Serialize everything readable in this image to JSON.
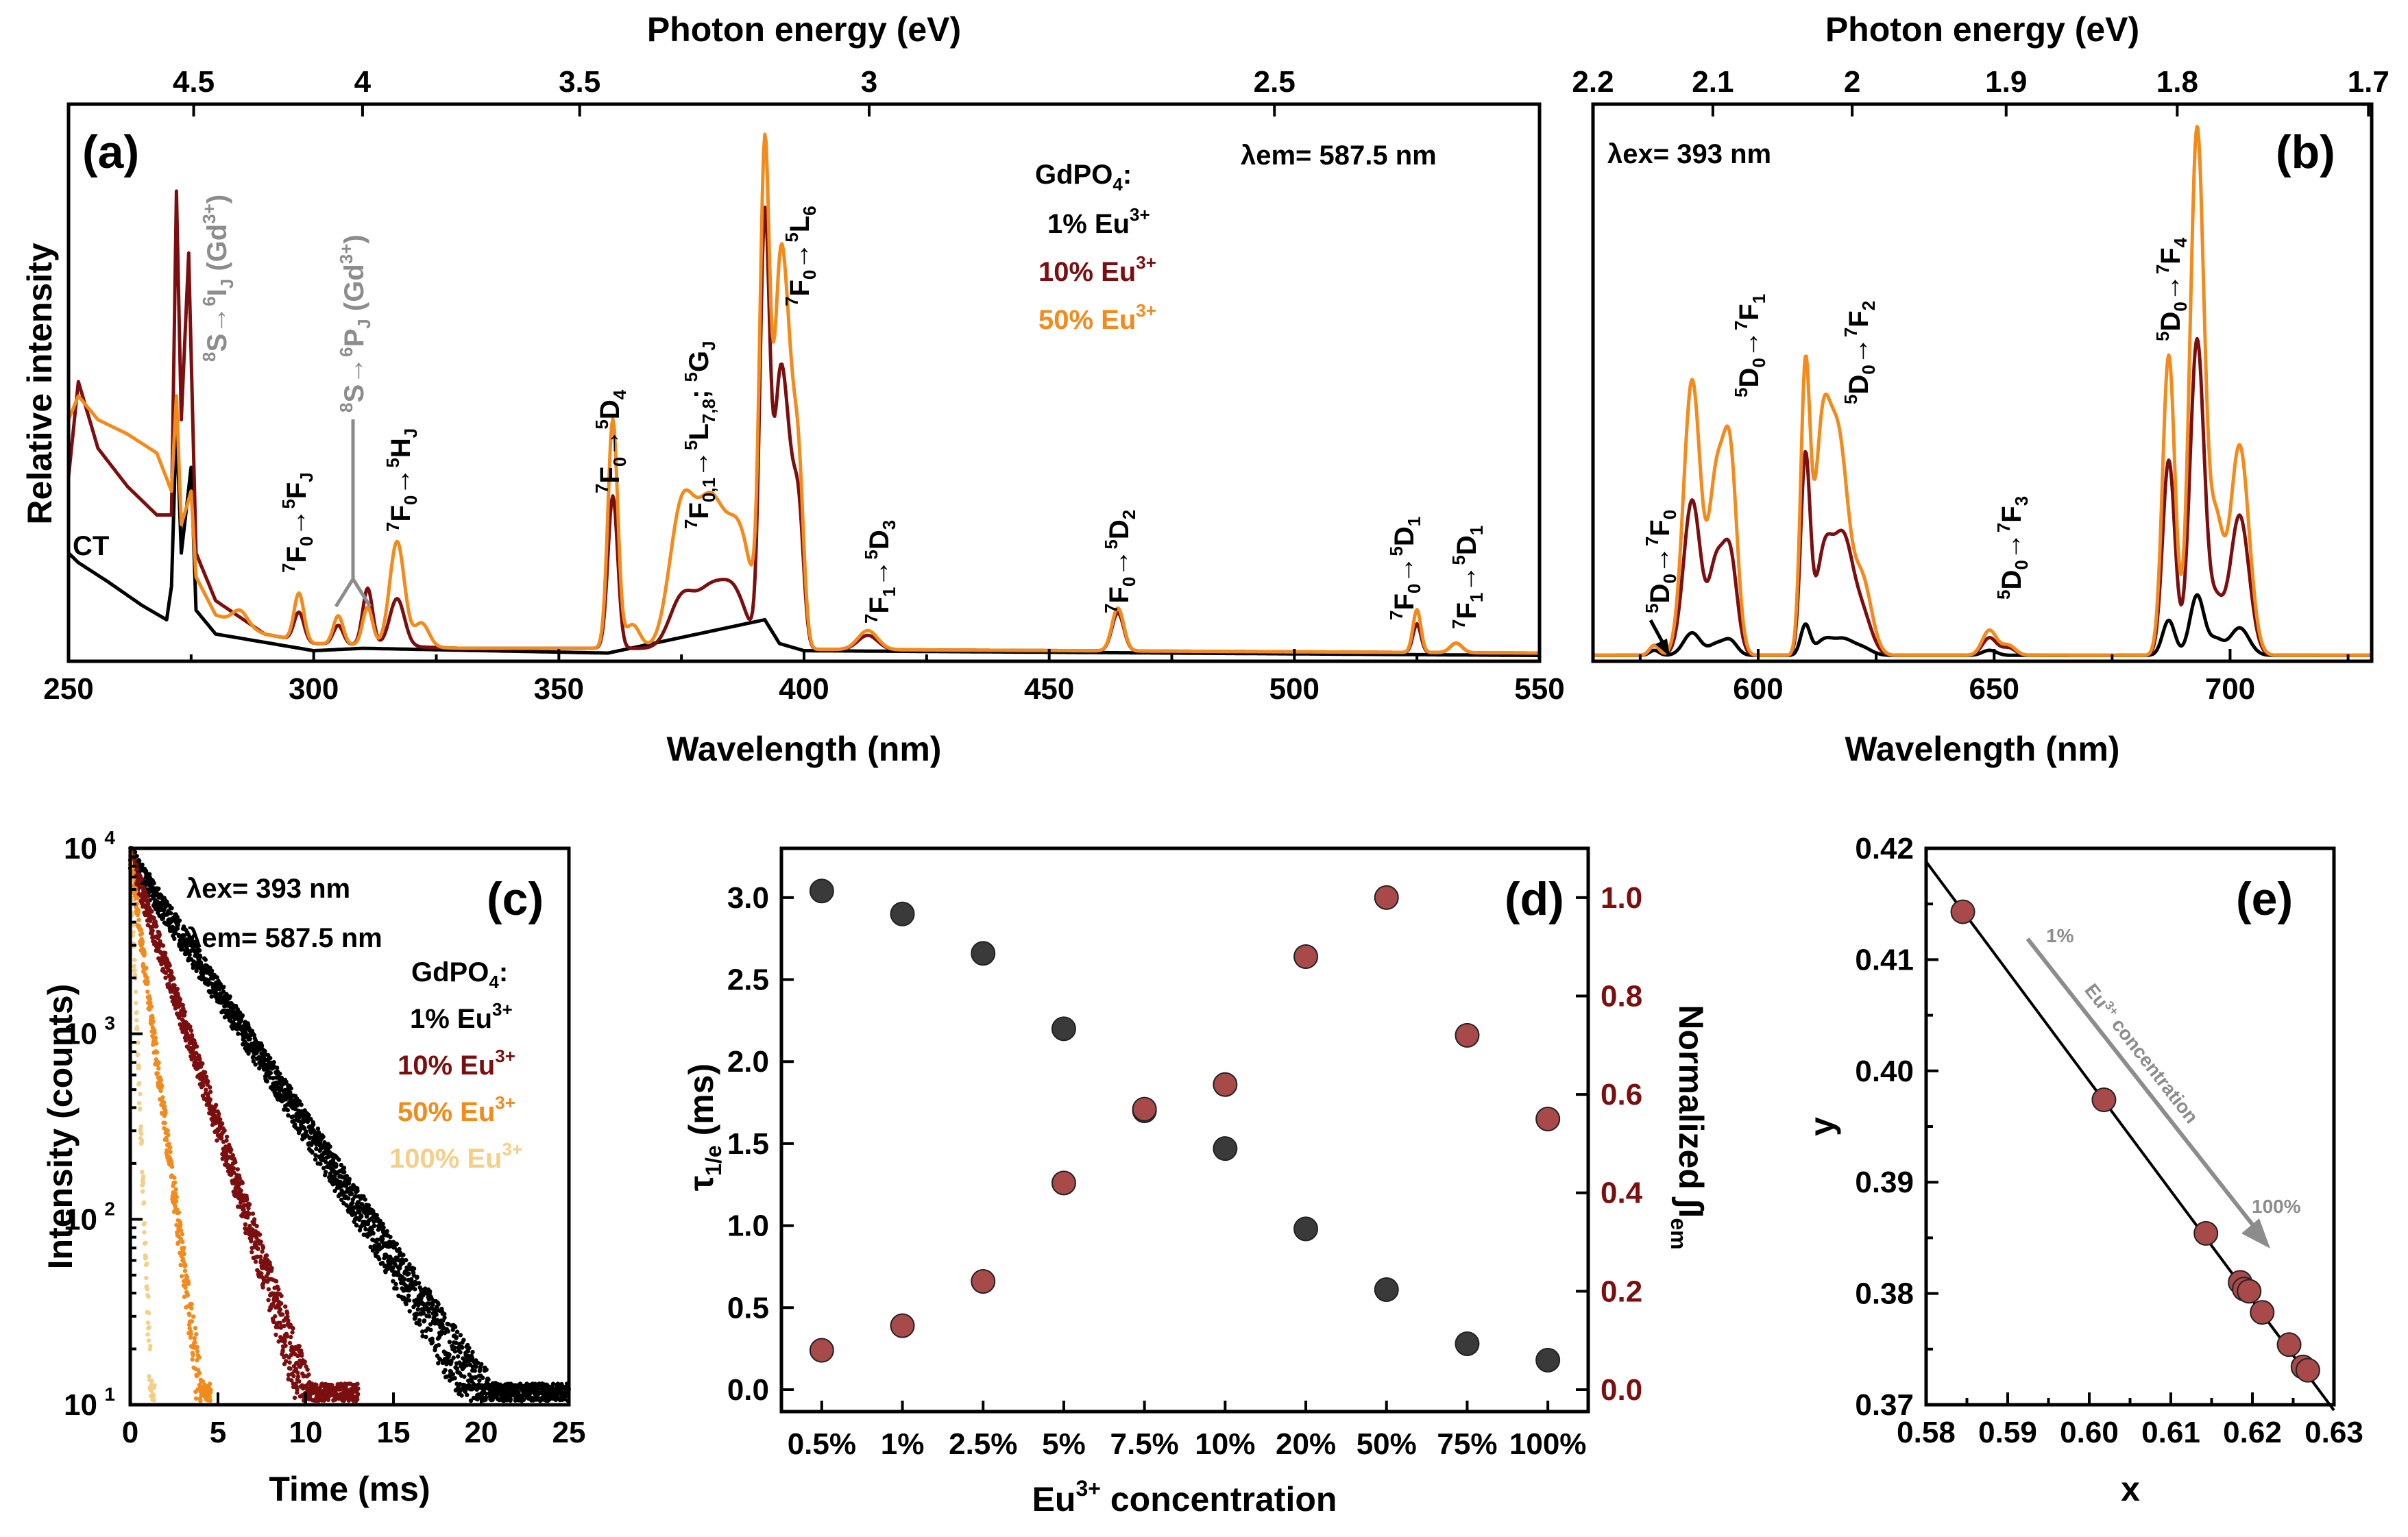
{
  "colors": {
    "c1": "#000000",
    "c10": "#7b0f0f",
    "c50": "#f28a1c",
    "c100": "#f3cf88",
    "gray": "#8c8c8c",
    "pointDark": "#3a3a3a",
    "pointRed": "#a84a4a"
  },
  "chart_data": [
    {
      "id": "a",
      "type": "line",
      "panel_label": "(a)",
      "xlabel": "Wavelength (nm)",
      "ylabel": "Relative intensity",
      "top_axis_label": "Photon energy (eV)",
      "xlim": [
        250,
        550
      ],
      "ylim": [
        0,
        1
      ],
      "xticks": [
        "250",
        "300",
        "350",
        "400",
        "450",
        "500",
        "550"
      ],
      "top_ticks": [
        "4.5",
        "4",
        "3.5",
        "3",
        "2.5"
      ],
      "note": "λem= 587.5 nm",
      "legend_title": "GdPO4:",
      "legend": [
        "1% Eu3+",
        "10% Eu3+",
        "50% Eu3+"
      ],
      "annotations": [
        "CT",
        "8S→6IJ (Gd3+)",
        "8S→6PJ (Gd3+)",
        "7F0→5FJ",
        "7F0→5HJ",
        "7F0→5D4",
        "7F0,1→5L7,8; 5GJ",
        "7F0→5L6",
        "7F1→5D3",
        "7F0→5D2",
        "7F0→5D1",
        "7F1→5D1"
      ],
      "series": [
        {
          "name": "1% Eu3+",
          "color_key": "c1",
          "base": [
            [
              250,
              0.22
            ],
            [
              252,
              0.2
            ],
            [
              258,
              0.16
            ],
            [
              265,
              0.11
            ],
            [
              270,
              0.08
            ],
            [
              271,
              0.15
            ],
            [
              272,
              0.5
            ],
            [
              273,
              0.22
            ],
            [
              275,
              0.4
            ],
            [
              276,
              0.1
            ],
            [
              280,
              0.05
            ],
            [
              300,
              0.015
            ],
            [
              310,
              0.02
            ],
            [
              360,
              0.01
            ],
            [
              392,
              0.08
            ],
            [
              395,
              0.03
            ],
            [
              400,
              0.015
            ],
            [
              550,
              0.005
            ]
          ],
          "peaks": []
        },
        {
          "name": "10% Eu3+",
          "color_key": "c10",
          "base": [
            [
              250,
              0.38
            ],
            [
              252,
              0.58
            ],
            [
              256,
              0.44
            ],
            [
              262,
              0.36
            ],
            [
              268,
              0.3
            ],
            [
              271,
              0.3
            ],
            [
              272,
              0.98
            ],
            [
              273,
              0.5
            ],
            [
              274.5,
              0.85
            ],
            [
              276,
              0.22
            ],
            [
              280,
              0.12
            ],
            [
              290,
              0.05
            ],
            [
              300,
              0.03
            ],
            [
              330,
              0.02
            ],
            [
              360,
              0.02
            ],
            [
              550,
              0.01
            ]
          ],
          "peaks": [
            [
              297,
              0.06,
              1.0
            ],
            [
              305,
              0.04,
              1.0
            ],
            [
              311,
              0.12,
              1.0
            ],
            [
              317,
              0.1,
              1.5
            ],
            [
              361,
              0.32,
              1.0
            ],
            [
              375,
              0.1,
              2.5
            ],
            [
              381,
              0.12,
              3.0
            ],
            [
              386,
              0.1,
              2.5
            ],
            [
              392,
              0.9,
              1.0
            ],
            [
              395,
              0.5,
              1.2
            ],
            [
              397,
              0.3,
              1.2
            ],
            [
              399,
              0.25,
              1.0
            ],
            [
              413,
              0.03,
              2.0
            ],
            [
              464,
              0.08,
              1.2
            ],
            [
              525,
              0.06,
              0.8
            ],
            [
              533,
              0.02,
              1.2
            ]
          ]
        },
        {
          "name": "50% Eu3+",
          "color_key": "c50",
          "base": [
            [
              250,
              0.5
            ],
            [
              252,
              0.55
            ],
            [
              256,
              0.5
            ],
            [
              262,
              0.47
            ],
            [
              268,
              0.43
            ],
            [
              271,
              0.35
            ],
            [
              272,
              0.55
            ],
            [
              273,
              0.28
            ],
            [
              275,
              0.35
            ],
            [
              276,
              0.17
            ],
            [
              280,
              0.09
            ],
            [
              290,
              0.05
            ],
            [
              300,
              0.03
            ],
            [
              330,
              0.02
            ],
            [
              360,
              0.02
            ],
            [
              550,
              0.01
            ]
          ],
          "peaks": [
            [
              285,
              0.03,
              1.5
            ],
            [
              297,
              0.1,
              1.0
            ],
            [
              305,
              0.06,
              1.0
            ],
            [
              311,
              0.08,
              1.0
            ],
            [
              317,
              0.22,
              1.5
            ],
            [
              322,
              0.05,
              1.5
            ],
            [
              361,
              0.48,
              1.0
            ],
            [
              365,
              0.05,
              1.5
            ],
            [
              375,
              0.28,
              2.5
            ],
            [
              381,
              0.3,
              3.0
            ],
            [
              387,
              0.22,
              2.5
            ],
            [
              392,
              1.02,
              1.0
            ],
            [
              395,
              0.7,
              1.2
            ],
            [
              397,
              0.45,
              1.2
            ],
            [
              399,
              0.32,
              1.0
            ],
            [
              413,
              0.04,
              2.0
            ],
            [
              464,
              0.09,
              1.2
            ],
            [
              525,
              0.09,
              0.8
            ],
            [
              533,
              0.02,
              1.2
            ]
          ]
        }
      ]
    },
    {
      "id": "b",
      "type": "line",
      "panel_label": "(b)",
      "xlabel": "Wavelength (nm)",
      "top_axis_label": "Photon energy (eV)",
      "xlim": [
        565,
        730
      ],
      "ylim": [
        0,
        1
      ],
      "xticks": [
        "600",
        "650",
        "700"
      ],
      "top_ticks": [
        "2.2",
        "2.1",
        "2",
        "1.9",
        "1.8",
        "1.7"
      ],
      "note": "λex= 393 nm",
      "annotations": [
        "5D0→7F0",
        "5D0→7F1",
        "5D0→7F2",
        "5D0→7F3",
        "5D0→7F4"
      ],
      "series": [
        {
          "name": "1% Eu3+",
          "color_key": "c1",
          "peaks": [
            [
              578,
              0.01,
              1.0
            ],
            [
              586,
              0.045,
              1.8
            ],
            [
              591,
              0.02,
              1.5
            ],
            [
              594,
              0.03,
              1.5
            ],
            [
              610,
              0.06,
              1.0
            ],
            [
              614,
              0.03,
              1.8
            ],
            [
              618,
              0.03,
              2.0
            ],
            [
              622,
              0.015,
              2.0
            ],
            [
              649,
              0.01,
              1.5
            ],
            [
              687,
              0.07,
              1.3
            ],
            [
              693,
              0.12,
              1.5
            ],
            [
              697,
              0.03,
              1.5
            ],
            [
              702,
              0.055,
              2.0
            ]
          ]
        },
        {
          "name": "10% Eu3+",
          "color_key": "c10",
          "peaks": [
            [
              578,
              0.02,
              1.0
            ],
            [
              586,
              0.31,
              1.8
            ],
            [
              591,
              0.17,
              1.5
            ],
            [
              594,
              0.2,
              1.5
            ],
            [
              610,
              0.39,
              1.0
            ],
            [
              614,
              0.2,
              1.8
            ],
            [
              618,
              0.22,
              2.0
            ],
            [
              622,
              0.08,
              2.0
            ],
            [
              649,
              0.035,
              1.5
            ],
            [
              653,
              0.015,
              1.5
            ],
            [
              687,
              0.39,
              1.3
            ],
            [
              693,
              0.63,
              1.5
            ],
            [
              697,
              0.1,
              1.5
            ],
            [
              702,
              0.28,
              2.0
            ]
          ]
        },
        {
          "name": "50% Eu3+",
          "color_key": "c50",
          "peaks": [
            [
              578,
              0.02,
              1.0
            ],
            [
              586,
              0.55,
              1.8
            ],
            [
              591,
              0.32,
              1.5
            ],
            [
              594,
              0.4,
              1.5
            ],
            [
              610,
              0.56,
              1.0
            ],
            [
              613.5,
              0.4,
              1.6
            ],
            [
              617,
              0.42,
              2.0
            ],
            [
              622,
              0.15,
              2.0
            ],
            [
              649,
              0.05,
              1.5
            ],
            [
              653,
              0.02,
              1.5
            ],
            [
              687,
              0.6,
              1.3
            ],
            [
              693,
              1.05,
              1.5
            ],
            [
              697,
              0.25,
              1.5
            ],
            [
              702,
              0.42,
              2.0
            ]
          ]
        }
      ]
    },
    {
      "id": "c",
      "type": "scatter",
      "panel_label": "(c)",
      "xlabel": "Time (ms)",
      "ylabel": "Intensity (counts)",
      "xlim": [
        0,
        25
      ],
      "ylim_log10": [
        1,
        4
      ],
      "xticks": [
        "0",
        "5",
        "10",
        "15",
        "20",
        "25"
      ],
      "yticks": [
        "10",
        "10",
        "10",
        "10"
      ],
      "yticks_exp": [
        "1",
        "2",
        "3",
        "4"
      ],
      "note1": "λex= 393 nm",
      "note2": "λem= 587.5 nm",
      "legend_title": "GdPO4:",
      "legend": [
        "1% Eu3+",
        "10% Eu3+",
        "50% Eu3+",
        "100% Eu3+"
      ],
      "series": [
        {
          "name": "1% Eu3+",
          "color_key": "c1",
          "tau_ms": 3.0,
          "I0": 9000,
          "tmax": 25
        },
        {
          "name": "10% Eu3+",
          "color_key": "c10",
          "tau_ms": 1.5,
          "I0": 9000,
          "tmax": 13
        },
        {
          "name": "50% Eu3+",
          "color_key": "c50",
          "tau_ms": 0.6,
          "I0": 9000,
          "tmax": 4.6
        },
        {
          "name": "100% Eu3+",
          "color_key": "c100",
          "tau_ms": 0.18,
          "I0": 9000,
          "tmax": 1.4
        }
      ]
    },
    {
      "id": "d",
      "type": "scatter",
      "panel_label": "(d)",
      "xlabel": "Eu3+ concentration",
      "ylabel_left": "τ1/e (ms)",
      "ylabel_right": "Normalized ∫Iem",
      "categories": [
        "0.5%",
        "1%",
        "2.5%",
        "5%",
        "7.5%",
        "10%",
        "20%",
        "50%",
        "75%",
        "100%"
      ],
      "ylim_left": [
        0,
        3.3
      ],
      "ylim_right": [
        0,
        1.1
      ],
      "yticks_left": [
        "0.0",
        "0.5",
        "1.0",
        "1.5",
        "2.0",
        "2.5",
        "3.0"
      ],
      "yticks_right": [
        "0.0",
        "0.2",
        "0.4",
        "0.6",
        "0.8",
        "1.0"
      ],
      "series": [
        {
          "name": "τ1/e",
          "axis": "left",
          "color_key": "pointDark",
          "values": [
            3.04,
            2.9,
            2.66,
            2.2,
            1.7,
            1.47,
            0.98,
            0.61,
            0.28,
            0.18
          ]
        },
        {
          "name": "Normalized ∫Iem",
          "axis": "right",
          "color_key": "pointRed",
          "values": [
            0.08,
            0.13,
            0.22,
            0.42,
            0.57,
            0.62,
            0.88,
            1.0,
            0.72,
            0.55
          ]
        }
      ]
    },
    {
      "id": "e",
      "type": "scatter",
      "panel_label": "(e)",
      "xlabel": "x",
      "ylabel": "y",
      "xlim": [
        0.58,
        0.63
      ],
      "ylim": [
        0.37,
        0.42
      ],
      "xticks": [
        "0.58",
        "0.59",
        "0.60",
        "0.61",
        "0.62",
        "0.63"
      ],
      "yticks": [
        "0.37",
        "0.38",
        "0.39",
        "0.40",
        "0.41",
        "0.42"
      ],
      "line": [
        [
          0.58,
          0.4188
        ],
        [
          0.63,
          0.3695
        ]
      ],
      "arrow_label_start": "1%",
      "arrow_label_mid": "Eu3+ concentration",
      "arrow_label_end": "100%",
      "points": [
        [
          0.5845,
          0.4143
        ],
        [
          0.6018,
          0.3974
        ],
        [
          0.6143,
          0.3854
        ],
        [
          0.6185,
          0.381
        ],
        [
          0.619,
          0.3804
        ],
        [
          0.6196,
          0.3802
        ],
        [
          0.6212,
          0.3783
        ],
        [
          0.6245,
          0.3754
        ],
        [
          0.6262,
          0.3734
        ],
        [
          0.6268,
          0.3731
        ]
      ]
    }
  ]
}
